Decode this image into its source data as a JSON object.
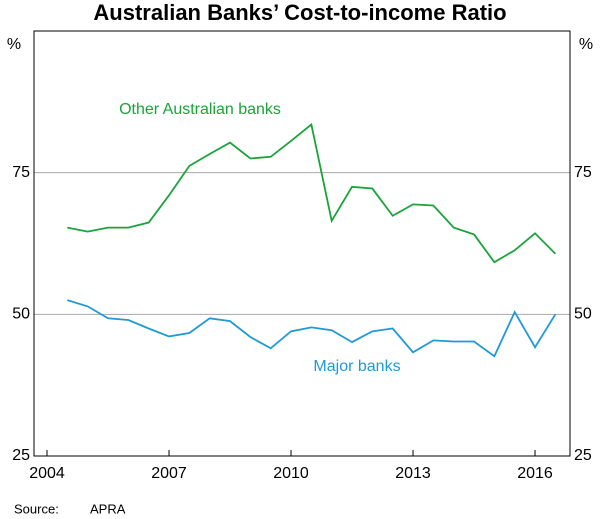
{
  "chart_data": {
    "type": "line",
    "title": "Australian Banks’ Cost-to-income Ratio",
    "y_unit": "%",
    "x": [
      2004.5,
      2005,
      2005.5,
      2006,
      2006.5,
      2007,
      2007.5,
      2008,
      2008.5,
      2009,
      2009.5,
      2010,
      2010.5,
      2011,
      2011.5,
      2012,
      2012.5,
      2013,
      2013.5,
      2014,
      2014.5,
      2015,
      2015.5,
      2016,
      2016.5
    ],
    "series": [
      {
        "name": "Other Australian banks",
        "color": "#1aa33a",
        "values": [
          65.3,
          64.6,
          65.3,
          65.3,
          66.2,
          71.0,
          76.2,
          78.3,
          80.3,
          77.5,
          77.8,
          80.6,
          83.5,
          66.5,
          72.5,
          72.2,
          67.4,
          69.4,
          69.2,
          65.3,
          64.1,
          59.2,
          61.3,
          64.3,
          60.7
        ]
      },
      {
        "name": "Major banks",
        "color": "#1f9ad6",
        "values": [
          52.5,
          51.4,
          49.3,
          49.0,
          47.5,
          46.1,
          46.7,
          49.3,
          48.8,
          46.0,
          44.0,
          47.0,
          47.7,
          47.2,
          45.1,
          47.0,
          47.5,
          43.3,
          45.4,
          45.2,
          45.2,
          42.6,
          50.4,
          44.2,
          50.0
        ]
      }
    ],
    "xlim": [
      2003.68,
      2016.86
    ],
    "xticks": [
      2004,
      2007,
      2010,
      2013,
      2016
    ],
    "ylim": [
      25,
      100
    ],
    "yticks": [
      25,
      50,
      75
    ],
    "grid": true,
    "source_label": "Source:",
    "source": "APRA"
  }
}
